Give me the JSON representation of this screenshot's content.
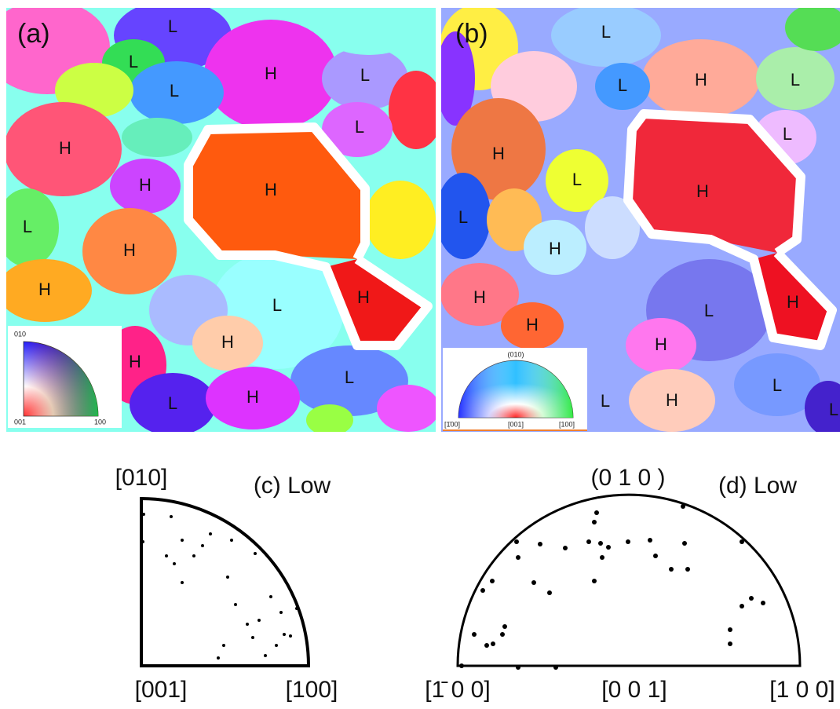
{
  "panels": {
    "a": {
      "label": "(a)",
      "grains": [
        "L",
        "L",
        "H",
        "L",
        "L",
        "L",
        "H",
        "H",
        "H",
        "L",
        "H",
        "H",
        "L",
        "H",
        "H",
        "H",
        "L",
        "L",
        "H"
      ],
      "legend": {
        "top": "010",
        "origin": "001",
        "right": "100"
      }
    },
    "b": {
      "label": "(b)",
      "grains": [
        "L",
        "H",
        "L",
        "L",
        "H",
        "L",
        "L",
        "H",
        "L",
        "H",
        "H",
        "H",
        "L",
        "H",
        "H",
        "L",
        "L",
        "H",
        "L"
      ],
      "legend": {
        "top": "(010)",
        "left": "[1̄00]",
        "center": "[001]",
        "right": "[100]"
      }
    },
    "c": {
      "title": "(c) Low",
      "top": "[010]",
      "origin": "[001]",
      "right": "[100]"
    },
    "d": {
      "title": "(d) Low",
      "top": "(0 1 0 )",
      "left": "[1̄ 0 0]",
      "center": "[0 0 1]",
      "right": "[1 0 0]"
    }
  }
}
